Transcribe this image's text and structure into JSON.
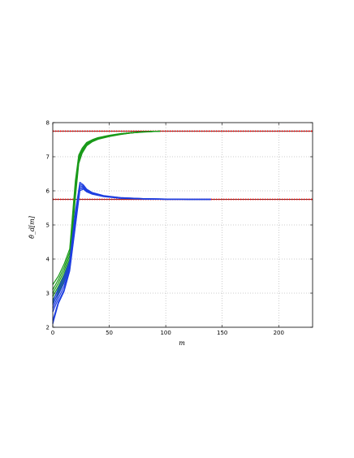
{
  "chart_data": {
    "type": "line",
    "xlabel": "m",
    "ylabel": "θ̂_d[m]",
    "xlim": [
      0,
      230
    ],
    "ylim": [
      2,
      8
    ],
    "xticks": [
      0,
      50,
      100,
      150,
      200
    ],
    "yticks": [
      2,
      3,
      4,
      5,
      6,
      7,
      8
    ],
    "grid": true,
    "colors": {
      "green": "#1a9a1a",
      "blue": "#1f3fe0",
      "reference": "#ff0000"
    },
    "reference_lines": [
      {
        "y": 7.75,
        "style": "dotted",
        "color": "#ff0000"
      },
      {
        "y": 5.75,
        "style": "dotted",
        "color": "#ff0000"
      }
    ],
    "series": [
      {
        "group": "green",
        "points": [
          [
            0,
            3.25
          ],
          [
            5,
            3.5
          ],
          [
            10,
            3.85
          ],
          [
            15,
            4.3
          ],
          [
            20,
            6.3
          ],
          [
            23,
            7.05
          ],
          [
            26,
            7.25
          ],
          [
            30,
            7.42
          ],
          [
            35,
            7.5
          ],
          [
            40,
            7.56
          ],
          [
            50,
            7.63
          ],
          [
            60,
            7.68
          ],
          [
            70,
            7.71
          ],
          [
            80,
            7.73
          ],
          [
            95,
            7.75
          ]
        ]
      },
      {
        "group": "green",
        "points": [
          [
            0,
            3.1
          ],
          [
            5,
            3.4
          ],
          [
            10,
            3.75
          ],
          [
            15,
            4.2
          ],
          [
            20,
            6.2
          ],
          [
            23,
            7.0
          ],
          [
            26,
            7.22
          ],
          [
            30,
            7.4
          ],
          [
            35,
            7.48
          ],
          [
            40,
            7.55
          ],
          [
            50,
            7.62
          ],
          [
            60,
            7.67
          ],
          [
            70,
            7.71
          ],
          [
            80,
            7.73
          ],
          [
            95,
            7.75
          ]
        ]
      },
      {
        "group": "green",
        "points": [
          [
            0,
            3.0
          ],
          [
            5,
            3.3
          ],
          [
            10,
            3.65
          ],
          [
            15,
            4.1
          ],
          [
            20,
            6.1
          ],
          [
            23,
            6.95
          ],
          [
            26,
            7.18
          ],
          [
            30,
            7.38
          ],
          [
            35,
            7.47
          ],
          [
            40,
            7.54
          ],
          [
            50,
            7.61
          ],
          [
            60,
            7.67
          ],
          [
            70,
            7.7
          ],
          [
            80,
            7.73
          ],
          [
            95,
            7.75
          ]
        ]
      },
      {
        "group": "green",
        "points": [
          [
            0,
            2.9
          ],
          [
            5,
            3.2
          ],
          [
            10,
            3.55
          ],
          [
            15,
            4.0
          ],
          [
            20,
            6.0
          ],
          [
            23,
            6.9
          ],
          [
            26,
            7.15
          ],
          [
            30,
            7.36
          ],
          [
            35,
            7.46
          ],
          [
            40,
            7.53
          ],
          [
            50,
            7.6
          ],
          [
            60,
            7.66
          ],
          [
            70,
            7.7
          ],
          [
            80,
            7.73
          ],
          [
            95,
            7.75
          ]
        ]
      },
      {
        "group": "green",
        "points": [
          [
            0,
            2.8
          ],
          [
            5,
            3.1
          ],
          [
            10,
            3.45
          ],
          [
            15,
            3.9
          ],
          [
            20,
            5.9
          ],
          [
            23,
            6.85
          ],
          [
            26,
            7.12
          ],
          [
            30,
            7.34
          ],
          [
            35,
            7.45
          ],
          [
            40,
            7.52
          ],
          [
            50,
            7.6
          ],
          [
            60,
            7.66
          ],
          [
            70,
            7.7
          ],
          [
            80,
            7.73
          ],
          [
            95,
            7.75
          ]
        ]
      },
      {
        "group": "green",
        "points": [
          [
            0,
            2.7
          ],
          [
            5,
            3.0
          ],
          [
            10,
            3.35
          ],
          [
            15,
            3.8
          ],
          [
            20,
            5.8
          ],
          [
            23,
            6.8
          ],
          [
            26,
            7.1
          ],
          [
            30,
            7.32
          ],
          [
            35,
            7.44
          ],
          [
            40,
            7.51
          ],
          [
            50,
            7.59
          ],
          [
            60,
            7.65
          ],
          [
            70,
            7.7
          ],
          [
            80,
            7.72
          ],
          [
            95,
            7.75
          ]
        ]
      },
      {
        "group": "blue",
        "points": [
          [
            0,
            2.75
          ],
          [
            5,
            3.15
          ],
          [
            10,
            3.5
          ],
          [
            15,
            3.95
          ],
          [
            20,
            5.4
          ],
          [
            24,
            6.25
          ],
          [
            27,
            6.18
          ],
          [
            30,
            6.05
          ],
          [
            35,
            5.95
          ],
          [
            45,
            5.86
          ],
          [
            60,
            5.8
          ],
          [
            80,
            5.77
          ],
          [
            100,
            5.76
          ],
          [
            120,
            5.75
          ],
          [
            140,
            5.75
          ]
        ]
      },
      {
        "group": "blue",
        "points": [
          [
            0,
            2.65
          ],
          [
            5,
            3.05
          ],
          [
            10,
            3.4
          ],
          [
            15,
            3.85
          ],
          [
            20,
            5.3
          ],
          [
            24,
            6.2
          ],
          [
            27,
            6.15
          ],
          [
            30,
            6.03
          ],
          [
            35,
            5.94
          ],
          [
            45,
            5.85
          ],
          [
            60,
            5.8
          ],
          [
            80,
            5.77
          ],
          [
            100,
            5.76
          ],
          [
            120,
            5.75
          ],
          [
            140,
            5.75
          ]
        ]
      },
      {
        "group": "blue",
        "points": [
          [
            0,
            2.55
          ],
          [
            5,
            2.95
          ],
          [
            10,
            3.3
          ],
          [
            15,
            3.78
          ],
          [
            20,
            5.2
          ],
          [
            24,
            6.15
          ],
          [
            27,
            6.12
          ],
          [
            30,
            6.02
          ],
          [
            35,
            5.93
          ],
          [
            45,
            5.85
          ],
          [
            60,
            5.79
          ],
          [
            80,
            5.77
          ],
          [
            100,
            5.76
          ],
          [
            120,
            5.75
          ],
          [
            140,
            5.75
          ]
        ]
      },
      {
        "group": "blue",
        "points": [
          [
            0,
            2.45
          ],
          [
            5,
            2.85
          ],
          [
            10,
            3.2
          ],
          [
            15,
            3.72
          ],
          [
            20,
            5.1
          ],
          [
            24,
            6.1
          ],
          [
            27,
            6.1
          ],
          [
            30,
            6.0
          ],
          [
            35,
            5.92
          ],
          [
            45,
            5.84
          ],
          [
            60,
            5.79
          ],
          [
            80,
            5.76
          ],
          [
            100,
            5.75
          ],
          [
            120,
            5.75
          ],
          [
            140,
            5.75
          ]
        ]
      },
      {
        "group": "blue",
        "points": [
          [
            0,
            2.2
          ],
          [
            5,
            2.75
          ],
          [
            10,
            3.1
          ],
          [
            15,
            3.7
          ],
          [
            20,
            5.0
          ],
          [
            24,
            6.05
          ],
          [
            27,
            6.08
          ],
          [
            30,
            5.98
          ],
          [
            35,
            5.91
          ],
          [
            45,
            5.84
          ],
          [
            60,
            5.79
          ],
          [
            80,
            5.76
          ],
          [
            100,
            5.75
          ],
          [
            120,
            5.75
          ],
          [
            140,
            5.75
          ]
        ]
      },
      {
        "group": "blue",
        "points": [
          [
            0,
            2.1
          ],
          [
            5,
            2.7
          ],
          [
            10,
            3.05
          ],
          [
            15,
            3.65
          ],
          [
            20,
            4.95
          ],
          [
            24,
            6.0
          ],
          [
            27,
            6.05
          ],
          [
            30,
            5.97
          ],
          [
            35,
            5.9
          ],
          [
            45,
            5.83
          ],
          [
            60,
            5.78
          ],
          [
            80,
            5.76
          ],
          [
            100,
            5.75
          ],
          [
            120,
            5.75
          ],
          [
            140,
            5.75
          ]
        ]
      }
    ]
  }
}
